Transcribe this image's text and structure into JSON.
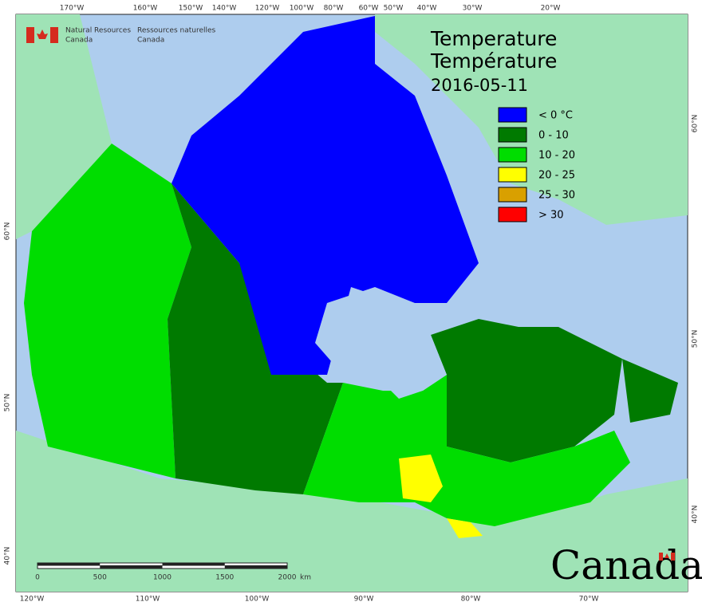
{
  "header": {
    "org_en": [
      "Natural Resources",
      "Canada"
    ],
    "org_fr": [
      "Ressources naturelles",
      "Canada"
    ]
  },
  "title": [
    "Temperature",
    "Température"
  ],
  "date": "2016-05-11",
  "legend": [
    {
      "label": "< 0 °C",
      "color": "#0000ff"
    },
    {
      "label": "0 - 10",
      "color": "#007a00"
    },
    {
      "label": "10 - 20",
      "color": "#00dd00"
    },
    {
      "label": "20 - 25",
      "color": "#ffff00"
    },
    {
      "label": "25 - 30",
      "color": "#d9a000"
    },
    {
      "label": "> 30",
      "color": "#ff0000"
    }
  ],
  "graticule": {
    "top": [
      "170°W",
      "160°W",
      "150°W",
      "140°W",
      "120°W",
      "100°W",
      "80°W",
      "60°W",
      "50°W",
      "40°W",
      "30°W",
      "20°W"
    ],
    "bottom": [
      "120°W",
      "110°W",
      "100°W",
      "90°W",
      "80°W",
      "70°W"
    ],
    "left": [
      "60°N",
      "50°N",
      "40°N"
    ],
    "right": [
      "60°N",
      "50°N",
      "40°N"
    ]
  },
  "scale_bar": {
    "labels": [
      "0",
      "500",
      "1000",
      "1500",
      "2000"
    ],
    "unit": "km"
  },
  "wordmark": "Canada"
}
